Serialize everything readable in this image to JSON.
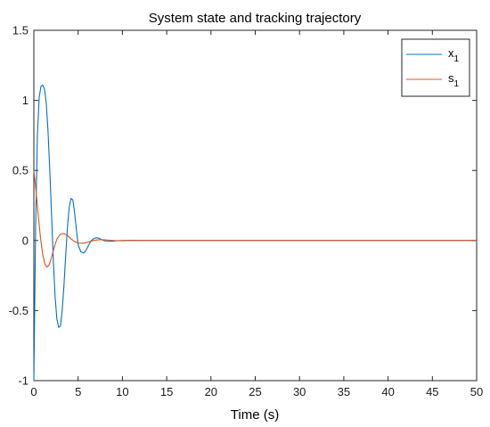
{
  "chart_data": {
    "type": "line",
    "title": "System state and tracking trajectory",
    "xlabel": "Time (s)",
    "ylabel": "",
    "xlim": [
      0,
      50
    ],
    "ylim": [
      -1,
      1.5
    ],
    "xticks": [
      "0",
      "5",
      "10",
      "15",
      "20",
      "25",
      "30",
      "35",
      "40",
      "45",
      "50"
    ],
    "yticks": [
      "-1",
      "-0.5",
      "0",
      "0.5",
      "1",
      "1.5"
    ],
    "grid": false,
    "legend_position": "top-right",
    "legend": [
      {
        "label_main": "x",
        "label_sub": "1"
      },
      {
        "label_main": "s",
        "label_sub": "1"
      }
    ],
    "series": [
      {
        "name": "x1",
        "color": "#0072BD",
        "x": [
          0,
          0.2,
          0.4,
          0.6,
          0.8,
          1.0,
          1.2,
          1.4,
          1.6,
          1.8,
          2.0,
          2.2,
          2.4,
          2.6,
          2.8,
          3.0,
          3.2,
          3.4,
          3.6,
          3.8,
          4.0,
          4.2,
          4.4,
          4.6,
          4.8,
          5.0,
          5.3,
          5.6,
          5.9,
          6.2,
          6.5,
          6.8,
          7.1,
          7.4,
          7.7,
          8.0,
          8.5,
          9.0,
          9.5,
          10.0,
          11.0,
          12.0,
          13.0,
          15.0,
          20.0,
          30.0,
          40.0,
          50.0
        ],
        "y": [
          -1.0,
          0.1,
          0.75,
          1.02,
          1.1,
          1.11,
          1.08,
          0.98,
          0.78,
          0.5,
          0.18,
          -0.14,
          -0.4,
          -0.56,
          -0.62,
          -0.61,
          -0.5,
          -0.32,
          -0.1,
          0.1,
          0.24,
          0.3,
          0.29,
          0.2,
          0.08,
          -0.03,
          -0.08,
          -0.09,
          -0.07,
          -0.03,
          0.0,
          0.015,
          0.02,
          0.015,
          0.005,
          -0.002,
          -0.006,
          -0.004,
          -0.001,
          0.0,
          0.001,
          0.0,
          0.0,
          0.0,
          0.0,
          0.0,
          0.0,
          0.0
        ]
      },
      {
        "name": "s1",
        "color": "#D95319",
        "x": [
          0,
          0.25,
          0.5,
          0.75,
          1.0,
          1.25,
          1.5,
          1.75,
          2.0,
          2.3,
          2.6,
          3.0,
          3.4,
          3.8,
          4.2,
          4.6,
          5.0,
          5.5,
          6.0,
          6.5,
          7.0,
          7.5,
          8.0,
          9.0,
          10.0,
          11.0,
          12.0,
          15.0,
          20.0,
          30.0,
          40.0,
          50.0
        ],
        "y": [
          0.5,
          0.35,
          0.18,
          0.02,
          -0.1,
          -0.17,
          -0.19,
          -0.17,
          -0.12,
          -0.05,
          0.01,
          0.045,
          0.05,
          0.035,
          0.012,
          -0.008,
          -0.018,
          -0.02,
          -0.013,
          -0.005,
          0.003,
          0.006,
          0.005,
          0.0,
          -0.002,
          0.0,
          0.0,
          0.0,
          0.0,
          0.0,
          0.0,
          0.0
        ]
      }
    ]
  }
}
